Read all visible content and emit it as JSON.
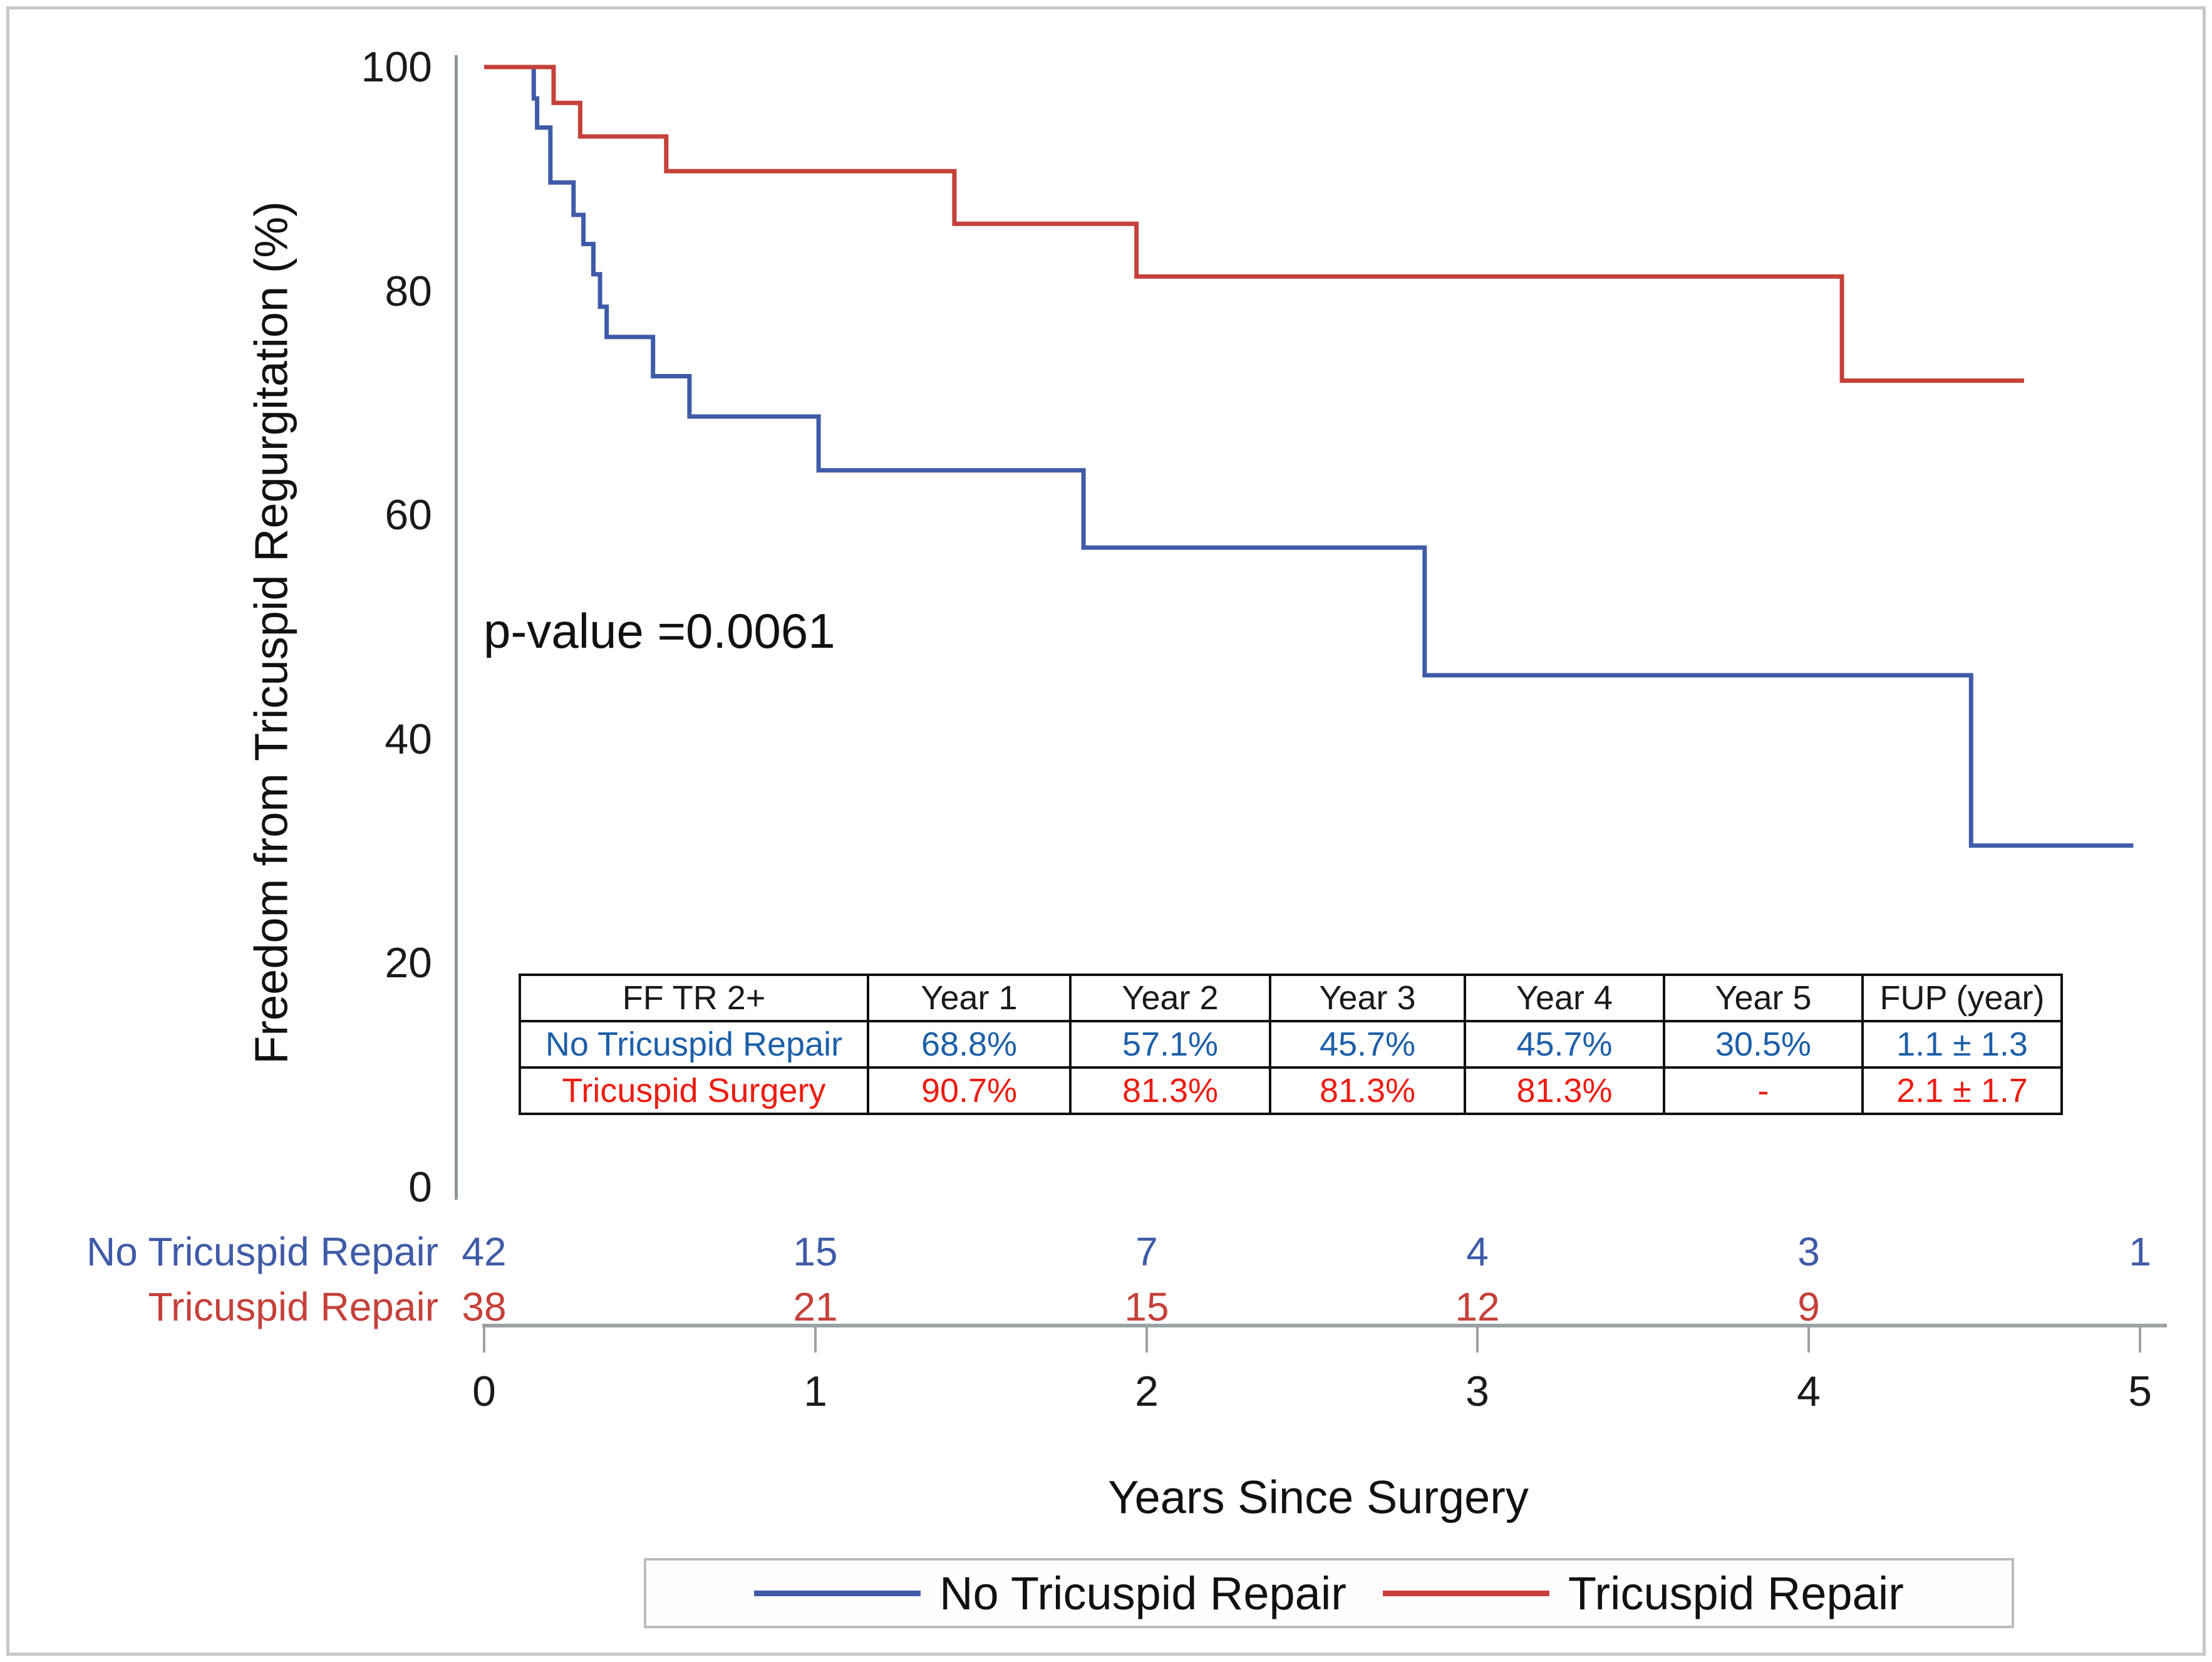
{
  "colors": {
    "line_blue": "#3f5ba8",
    "line_red": "#c5413a",
    "table_blue": "#1d5fa8",
    "table_red": "#ed1c12",
    "axis_gray": "#9ba2a5"
  },
  "chart_data": {
    "type": "line",
    "subtype": "kaplan-meier-step",
    "title": "",
    "xlabel": "Years Since Surgery",
    "ylabel": "Freedom from Tricuspid Regurgitation (%)",
    "xlim": [
      0,
      5
    ],
    "ylim": [
      0,
      100
    ],
    "x_ticks": [
      "0",
      "1",
      "2",
      "3",
      "4",
      "5"
    ],
    "y_ticks": [
      "100",
      "80",
      "60",
      "40",
      "20",
      "0"
    ],
    "grid": false,
    "legend_position": "bottom",
    "annotation": {
      "text": "p-value =0.0061",
      "x": 0.0,
      "y": 50
    },
    "series": [
      {
        "name": "No Tricuspid Repair",
        "color": "#3f5ba8",
        "steps": [
          [
            0,
            100
          ],
          [
            0.15,
            97.2
          ],
          [
            0.16,
            94.6
          ],
          [
            0.2,
            89.7
          ],
          [
            0.27,
            86.8
          ],
          [
            0.3,
            84.2
          ],
          [
            0.33,
            81.5
          ],
          [
            0.35,
            78.6
          ],
          [
            0.37,
            75.9
          ],
          [
            0.51,
            72.4
          ],
          [
            0.62,
            68.8
          ],
          [
            1.01,
            64.0
          ],
          [
            1.81,
            57.1
          ],
          [
            2.84,
            45.7
          ],
          [
            4.49,
            30.5
          ]
        ],
        "end_x": 4.98
      },
      {
        "name": "Tricuspid Repair",
        "color": "#c5413a",
        "steps": [
          [
            0,
            100
          ],
          [
            0.21,
            96.8
          ],
          [
            0.29,
            93.8
          ],
          [
            0.55,
            90.7
          ],
          [
            1.42,
            86.0
          ],
          [
            1.97,
            81.3
          ],
          [
            4.1,
            72.0
          ]
        ],
        "end_x": 4.65
      }
    ]
  },
  "p_value": "p-value =0.0061",
  "summary_table": {
    "headers": [
      "FF TR 2+",
      "Year 1",
      "Year 2",
      "Year 3",
      "Year 4",
      "Year 5",
      "FUP (year)"
    ],
    "rows": [
      {
        "label": "No Tricuspid Repair",
        "color": "#1d5fa8",
        "values": [
          "68.8%",
          "57.1%",
          "45.7%",
          "45.7%",
          "30.5%",
          "1.1 ± 1.3"
        ]
      },
      {
        "label": "Tricuspid Surgery",
        "color": "#ed1c12",
        "values": [
          "90.7%",
          "81.3%",
          "81.3%",
          "81.3%",
          "-",
          "2.1 ± 1.7"
        ]
      }
    ]
  },
  "risk_table": {
    "rows": [
      {
        "label": "No Tricuspid Repair",
        "color": "#3f5ba8",
        "counts": [
          "42",
          "15",
          "7",
          "4",
          "3",
          "1"
        ]
      },
      {
        "label": "Tricuspid Repair",
        "color": "#c5413a",
        "counts": [
          "38",
          "21",
          "15",
          "12",
          "9",
          ""
        ]
      }
    ]
  },
  "legend": {
    "items": [
      {
        "label": "No Tricuspid Repair",
        "color": "#3f5ba8"
      },
      {
        "label": "Tricuspid Repair",
        "color": "#c5413a"
      }
    ]
  }
}
